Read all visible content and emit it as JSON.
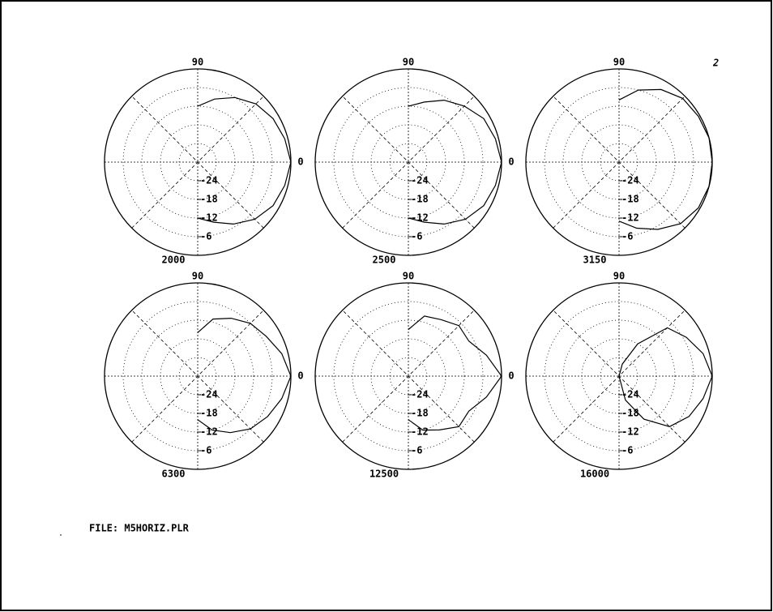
{
  "chart_data": [
    {
      "type": "polar",
      "title": "2000",
      "angles": [
        90,
        75,
        60,
        45,
        30,
        15,
        0,
        -15,
        -30,
        -45,
        -60,
        -75,
        -90
      ],
      "values": [
        -12,
        -9,
        -6,
        -3.5,
        -2,
        -1,
        0,
        -1,
        -2,
        -4,
        -7,
        -10,
        -12
      ],
      "rlim": [
        -30,
        0
      ],
      "rticks": [
        -24,
        -18,
        -12,
        -6
      ],
      "thetaticks": [
        90,
        0
      ],
      "color": "#000000",
      "grid": true
    },
    {
      "type": "polar",
      "title": "2500",
      "angles": [
        90,
        75,
        60,
        45,
        30,
        15,
        0,
        -15,
        -30,
        -45,
        -60,
        -75,
        -90
      ],
      "values": [
        -12,
        -10,
        -7,
        -4.5,
        -2,
        -1,
        0,
        -1,
        -2,
        -4,
        -7,
        -10,
        -12
      ],
      "rlim": [
        -30,
        0
      ],
      "rticks": [
        -24,
        -18,
        -12,
        -6
      ],
      "thetaticks": [
        90,
        0
      ],
      "color": "#000000",
      "grid": true
    },
    {
      "type": "polar",
      "title": "3150",
      "angles": [
        90,
        75,
        60,
        45,
        30,
        15,
        0,
        -15,
        -30,
        -45,
        -60,
        -75,
        -90
      ],
      "values": [
        -10,
        -6,
        -3,
        -1,
        -0.5,
        0,
        0,
        0,
        -0.5,
        -2,
        -5,
        -8,
        -11
      ],
      "rlim": [
        -30,
        0
      ],
      "rticks": [
        -24,
        -18,
        -12,
        -6
      ],
      "thetaticks": [
        90,
        0
      ],
      "color": "#000000",
      "grid": true
    },
    {
      "type": "polar",
      "title": "6300",
      "angles": [
        90,
        75,
        60,
        45,
        30,
        15,
        0,
        -15,
        -30,
        -45,
        -60,
        -75,
        -90
      ],
      "values": [
        -16,
        -11,
        -8.5,
        -6,
        -4.5,
        -2,
        0,
        -2,
        -4,
        -6,
        -9,
        -12,
        -16
      ],
      "rlim": [
        -30,
        0
      ],
      "rticks": [
        -24,
        -18,
        -12,
        -6
      ],
      "thetaticks": [
        90,
        0
      ],
      "color": "#000000",
      "grid": true
    },
    {
      "type": "polar",
      "title": "12500",
      "angles": [
        90,
        75,
        60,
        45,
        30,
        15,
        0,
        -15,
        -30,
        -45,
        -60,
        -75,
        -90
      ],
      "values": [
        -15,
        -10,
        -9,
        -7,
        -7.5,
        -4,
        0,
        -4,
        -7.5,
        -7,
        -10,
        -12,
        -16
      ],
      "rlim": [
        -30,
        0
      ],
      "rticks": [
        -24,
        -18,
        -12,
        -6
      ],
      "thetaticks": [
        90,
        0
      ],
      "color": "#000000",
      "grid": true
    },
    {
      "type": "polar",
      "title": "16000",
      "angles": [
        90,
        75,
        60,
        45,
        30,
        15,
        0,
        -15,
        -30,
        -45,
        -60,
        -75,
        -90
      ],
      "values": [
        -30,
        -26,
        -18,
        -8,
        -5,
        -2,
        0,
        -2,
        -4,
        -7,
        -14,
        -22,
        -30
      ],
      "rlim": [
        -30,
        0
      ],
      "rticks": [
        -24,
        -18,
        -12,
        -6
      ],
      "thetaticks": [
        90,
        0
      ],
      "color": "#000000",
      "grid": true
    }
  ],
  "file_label": "FILE: M5HORIZ.PLR",
  "annotation": "2"
}
